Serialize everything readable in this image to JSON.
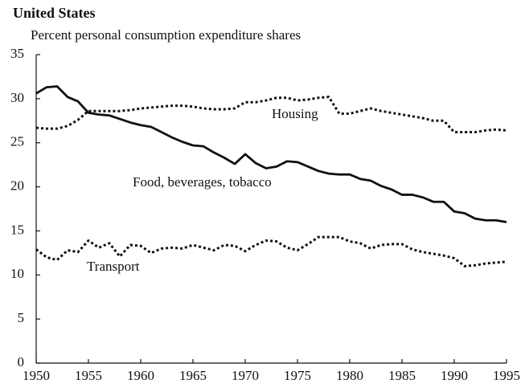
{
  "chart_data": {
    "type": "line",
    "title": "United States",
    "subtitle": "Percent personal consumption expenditure shares",
    "x": [
      1950,
      1951,
      1952,
      1953,
      1954,
      1955,
      1956,
      1957,
      1958,
      1959,
      1960,
      1961,
      1962,
      1963,
      1964,
      1965,
      1966,
      1967,
      1968,
      1969,
      1970,
      1971,
      1972,
      1973,
      1974,
      1975,
      1976,
      1977,
      1978,
      1979,
      1980,
      1981,
      1982,
      1983,
      1984,
      1985,
      1986,
      1987,
      1988,
      1989,
      1990,
      1991,
      1992,
      1993,
      1994,
      1995
    ],
    "series": [
      {
        "name": "Food, beverages, tobacco",
        "color": "#111111",
        "style": "solid",
        "values": [
          30.6,
          31.3,
          31.4,
          30.2,
          29.7,
          28.4,
          28.2,
          28.1,
          27.7,
          27.3,
          27.0,
          26.8,
          26.2,
          25.6,
          25.1,
          24.7,
          24.6,
          23.9,
          23.3,
          22.6,
          23.7,
          22.7,
          22.1,
          22.3,
          22.9,
          22.8,
          22.3,
          21.8,
          21.5,
          21.4,
          21.4,
          20.9,
          20.7,
          20.1,
          19.7,
          19.1,
          19.1,
          18.8,
          18.3,
          18.3,
          17.2,
          17.0,
          16.4,
          16.2,
          16.2,
          16.0
        ]
      },
      {
        "name": "Housing",
        "color": "#111111",
        "style": "dotted",
        "values": [
          26.7,
          26.6,
          26.6,
          26.9,
          27.6,
          28.6,
          28.6,
          28.6,
          28.6,
          28.7,
          28.9,
          29.0,
          29.1,
          29.2,
          29.2,
          29.1,
          28.9,
          28.8,
          28.8,
          28.9,
          29.6,
          29.6,
          29.8,
          30.1,
          30.1,
          29.8,
          29.9,
          30.1,
          30.2,
          28.3,
          28.3,
          28.6,
          28.9,
          28.6,
          28.4,
          28.2,
          28.0,
          27.8,
          27.5,
          27.5,
          26.2,
          26.2,
          26.2,
          26.4,
          26.5,
          26.4
        ]
      },
      {
        "name": "Transport",
        "color": "#111111",
        "style": "dotted",
        "values": [
          12.9,
          12.0,
          11.7,
          12.8,
          12.6,
          13.9,
          13.1,
          13.6,
          12.1,
          13.4,
          13.3,
          12.5,
          13.0,
          13.1,
          13.0,
          13.4,
          13.1,
          12.8,
          13.4,
          13.3,
          12.7,
          13.4,
          13.9,
          13.8,
          13.1,
          12.8,
          13.5,
          14.3,
          14.3,
          14.3,
          13.8,
          13.6,
          13.0,
          13.4,
          13.5,
          13.5,
          12.9,
          12.6,
          12.4,
          12.2,
          11.9,
          11.0,
          11.1,
          11.3,
          11.4,
          11.5
        ]
      }
    ],
    "xlim": [
      1950,
      1995
    ],
    "xticks": [
      1950,
      1955,
      1960,
      1965,
      1970,
      1975,
      1980,
      1985,
      1990,
      1995
    ],
    "ylim": [
      0,
      35
    ],
    "yticks": [
      0,
      5,
      10,
      15,
      20,
      25,
      30,
      35
    ],
    "grid": false
  }
}
